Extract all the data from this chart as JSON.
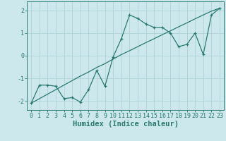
{
  "title": "",
  "xlabel": "Humidex (Indice chaleur)",
  "ylabel": "",
  "xlim": [
    -0.5,
    23.5
  ],
  "ylim": [
    -2.4,
    2.4
  ],
  "xticks": [
    0,
    1,
    2,
    3,
    4,
    5,
    6,
    7,
    8,
    9,
    10,
    11,
    12,
    13,
    14,
    15,
    16,
    17,
    18,
    19,
    20,
    21,
    22,
    23
  ],
  "yticks": [
    -2,
    -1,
    0,
    1,
    2
  ],
  "background_color": "#cde8ec",
  "grid_color": "#a8cdd4",
  "line_color": "#2a7a72",
  "x_data": [
    0,
    1,
    2,
    3,
    4,
    5,
    6,
    7,
    8,
    9,
    10,
    11,
    12,
    13,
    14,
    15,
    16,
    17,
    18,
    19,
    20,
    21,
    22,
    23
  ],
  "y_jagged": [
    -2.1,
    -1.3,
    -1.3,
    -1.35,
    -1.9,
    -1.85,
    -2.05,
    -1.5,
    -0.65,
    -1.35,
    -0.05,
    0.75,
    1.8,
    1.65,
    1.4,
    1.25,
    1.25,
    1.0,
    0.4,
    0.5,
    1.0,
    0.05,
    1.8,
    2.1
  ],
  "y_line": [
    -2.1,
    -1.9,
    -1.7,
    -1.5,
    -1.3,
    -1.1,
    -0.9,
    -0.72,
    -0.52,
    -0.35,
    -0.15,
    0.05,
    0.22,
    0.4,
    0.58,
    0.75,
    0.93,
    1.1,
    1.28,
    1.45,
    1.63,
    1.8,
    1.97,
    2.1
  ],
  "figsize": [
    3.2,
    2.0
  ],
  "dpi": 100,
  "tick_fontsize": 6.0,
  "xlabel_fontsize": 7.5
}
